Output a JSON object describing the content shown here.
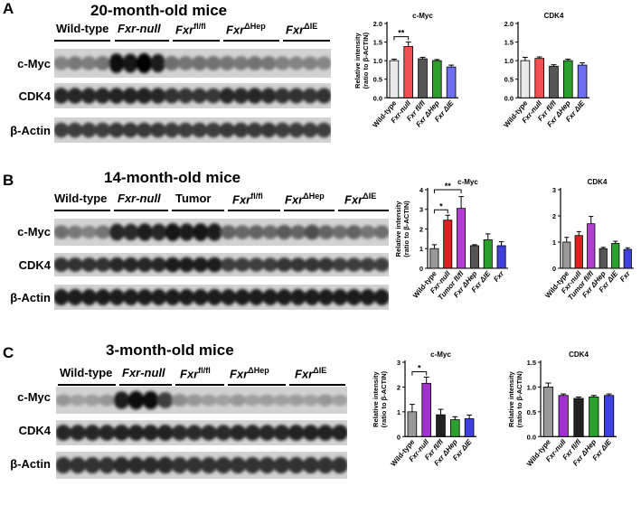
{
  "panels": [
    {
      "letter": "A",
      "title": "20-month-old mice",
      "groups": [
        {
          "label": "Wild-type",
          "style": "bold"
        },
        {
          "label": "Fxr-null",
          "style": "fxrnull"
        },
        {
          "label": "Fxr",
          "sup": "fl/fl",
          "style": "fxrsup"
        },
        {
          "label": "Fxr",
          "sup": "ΔHep",
          "style": "fxrsup"
        },
        {
          "label": "Fxr",
          "sup": "ΔIE",
          "style": "fxrsup"
        }
      ],
      "rows": [
        "c-Myc",
        "CDK4",
        "β-Actin"
      ]
    },
    {
      "letter": "B",
      "title": "14-month-old mice",
      "groups": [
        {
          "label": "Wild-type",
          "style": "bold"
        },
        {
          "label": "Fxr-null",
          "style": "fxrnull"
        },
        {
          "label": "Tumor",
          "style": "bold"
        },
        {
          "label": "Fxr",
          "sup": "fl/fl",
          "style": "fxrsup"
        },
        {
          "label": "Fxr",
          "sup": "ΔHep",
          "style": "fxrsup"
        },
        {
          "label": "Fxr",
          "sup": "ΔIE",
          "style": "fxrsup"
        }
      ],
      "rows": [
        "c-Myc",
        "CDK4",
        "β-Actin"
      ]
    },
    {
      "letter": "C",
      "title": "3-month-old mice",
      "groups": [
        {
          "label": "Wild-type",
          "style": "bold"
        },
        {
          "label": "Fxr-null",
          "style": "fxrnull"
        },
        {
          "label": "Fxr",
          "sup": "fl/fl",
          "style": "fxrsup"
        },
        {
          "label": "Fxr",
          "sup": "ΔHep",
          "style": "fxrsup"
        },
        {
          "label": "Fxr",
          "sup": "ΔIE",
          "style": "fxrsup"
        }
      ],
      "rows": [
        "c-Myc",
        "CDK4",
        "β-Actin"
      ]
    }
  ],
  "chart_data": [
    {
      "type": "bar",
      "panel": "A",
      "title": "c-Myc",
      "ylabel": "Relative intensity\n(ratio to β-ACTIN)",
      "ylim": [
        0,
        2
      ],
      "yticks": [
        0,
        0.5,
        1,
        1.5,
        2
      ],
      "ytick_labels": [
        "0.0",
        "0.5",
        "1.0",
        "1.5",
        "2.0"
      ],
      "categories": [
        "Wild-type",
        "Fxr-null",
        "Fxr fl/fl",
        "Fxr ΔHep",
        "Fxr ΔIE"
      ],
      "values": [
        1.0,
        1.38,
        1.05,
        1.0,
        0.83
      ],
      "errors": [
        0.04,
        0.12,
        0.04,
        0.03,
        0.05
      ],
      "colors": [
        "#e8e8e8",
        "#f05050",
        "#555555",
        "#2ca02c",
        "#6e6ef0"
      ],
      "significance": [
        {
          "from": 0,
          "to": 1,
          "label": "**"
        }
      ]
    },
    {
      "type": "bar",
      "panel": "A",
      "title": "CDK4",
      "ylabel": "",
      "ylim": [
        0,
        2
      ],
      "yticks": [
        0,
        0.5,
        1,
        1.5,
        2
      ],
      "ytick_labels": [
        "0.0",
        "0.5",
        "1.0",
        "1.5",
        "2.0"
      ],
      "categories": [
        "Wild-type",
        "Fxr-null",
        "Fxr fl/fl",
        "Fxr ΔHep",
        "Fxr ΔIE"
      ],
      "values": [
        1.0,
        1.06,
        0.85,
        1.0,
        0.88
      ],
      "errors": [
        0.09,
        0.04,
        0.04,
        0.04,
        0.06
      ],
      "colors": [
        "#e8e8e8",
        "#f05050",
        "#555555",
        "#2ca02c",
        "#6e6ef0"
      ],
      "significance": []
    },
    {
      "type": "bar",
      "panel": "B",
      "title": "c-Myc",
      "ylabel": "Relative intensity\n(ratio to β-ACTIN)",
      "ylim": [
        0,
        4
      ],
      "yticks": [
        0,
        1,
        2,
        3,
        4
      ],
      "ytick_labels": [
        "0",
        "1",
        "2",
        "3",
        "4"
      ],
      "categories": [
        "Wild-type",
        "Fxr-null",
        "Tumor fl/fl",
        "Fxr ΔHep",
        "Fxr ΔIE",
        "Fxr"
      ],
      "values": [
        1.0,
        2.45,
        3.05,
        1.15,
        1.45,
        1.15
      ],
      "errors": [
        0.2,
        0.25,
        0.6,
        0.05,
        0.3,
        0.2
      ],
      "colors": [
        "#999999",
        "#e02020",
        "#b040d0",
        "#555555",
        "#2ca02c",
        "#4040e0"
      ],
      "significance": [
        {
          "from": 0,
          "to": 1,
          "label": "*"
        },
        {
          "from": 0,
          "to": 2,
          "label": "**"
        }
      ]
    },
    {
      "type": "bar",
      "panel": "B",
      "title": "CDK4",
      "ylabel": "",
      "ylim": [
        0,
        3
      ],
      "yticks": [
        0,
        1,
        2,
        3
      ],
      "ytick_labels": [
        "0",
        "1",
        "2",
        "3"
      ],
      "categories": [
        "Wild-type",
        "Fxr-null",
        "Tumor fl/fl",
        "Fxr ΔHep",
        "Fxr ΔIE",
        "Fxr"
      ],
      "values": [
        1.0,
        1.25,
        1.7,
        0.75,
        0.95,
        0.72
      ],
      "errors": [
        0.18,
        0.15,
        0.28,
        0.05,
        0.08,
        0.06
      ],
      "colors": [
        "#999999",
        "#e02020",
        "#b040d0",
        "#555555",
        "#2ca02c",
        "#4040e0"
      ],
      "significance": []
    },
    {
      "type": "bar",
      "panel": "C",
      "title": "c-Myc",
      "ylabel": "Relative intensity\n(ratio to β-ACTIN)",
      "ylim": [
        0,
        3
      ],
      "yticks": [
        0,
        1,
        2,
        3
      ],
      "ytick_labels": [
        "0",
        "1",
        "2",
        "3"
      ],
      "categories": [
        "Wild-type",
        "Fxr-null",
        "Fxr fl/fl",
        "Fxr ΔHep",
        "Fxr ΔIE"
      ],
      "values": [
        1.0,
        2.15,
        0.88,
        0.68,
        0.72
      ],
      "errors": [
        0.3,
        0.25,
        0.22,
        0.12,
        0.15
      ],
      "colors": [
        "#999999",
        "#a030d0",
        "#222222",
        "#2ca02c",
        "#4040e0"
      ],
      "significance": [
        {
          "from": 0,
          "to": 1,
          "label": "*"
        }
      ]
    },
    {
      "type": "bar",
      "panel": "C",
      "title": "CDK4",
      "ylabel": "Relative intensity\n(ratio to β-ACTIN)",
      "ylim": [
        0,
        1.5
      ],
      "yticks": [
        0,
        0.5,
        1,
        1.5
      ],
      "ytick_labels": [
        "0.0",
        "0.5",
        "1.0",
        "1.5"
      ],
      "categories": [
        "Wild-type",
        "Fxr-null",
        "Fxr fl/fl",
        "Fxr ΔHep",
        "Fxr ΔIE"
      ],
      "values": [
        1.0,
        0.83,
        0.77,
        0.8,
        0.83
      ],
      "errors": [
        0.08,
        0.03,
        0.03,
        0.03,
        0.03
      ],
      "colors": [
        "#999999",
        "#a030d0",
        "#222222",
        "#2ca02c",
        "#4040e0"
      ],
      "significance": []
    }
  ],
  "blots": {
    "A": {
      "lanes": 20,
      "c-Myc": [
        0.35,
        0.4,
        0.38,
        0.42,
        0.95,
        0.9,
        1.0,
        0.85,
        0.45,
        0.42,
        0.44,
        0.43,
        0.42,
        0.4,
        0.43,
        0.41,
        0.36,
        0.34,
        0.35,
        0.33
      ],
      "CDK4": [
        0.8,
        0.8,
        0.8,
        0.8,
        0.82,
        0.84,
        0.83,
        0.8,
        0.75,
        0.74,
        0.73,
        0.72,
        0.8,
        0.79,
        0.8,
        0.78,
        0.76,
        0.75,
        0.74,
        0.75
      ],
      "β-Actin": [
        0.7,
        0.7,
        0.7,
        0.7,
        0.72,
        0.72,
        0.72,
        0.72,
        0.7,
        0.7,
        0.7,
        0.7,
        0.72,
        0.72,
        0.72,
        0.72,
        0.7,
        0.7,
        0.7,
        0.7
      ]
    },
    "B": {
      "lanes": 24,
      "c-Myc": [
        0.45,
        0.4,
        0.35,
        0.42,
        0.8,
        0.78,
        0.85,
        0.8,
        0.9,
        0.85,
        0.88,
        0.86,
        0.5,
        0.48,
        0.5,
        0.48,
        0.55,
        0.5,
        0.6,
        0.5,
        0.45,
        0.5,
        0.42,
        0.45
      ],
      "CDK4": [
        0.75,
        0.75,
        0.75,
        0.75,
        0.8,
        0.8,
        0.8,
        0.8,
        0.85,
        0.85,
        0.85,
        0.85,
        0.7,
        0.7,
        0.7,
        0.7,
        0.74,
        0.74,
        0.74,
        0.74,
        0.7,
        0.7,
        0.7,
        0.7
      ],
      "β-Actin": [
        0.85,
        0.85,
        0.85,
        0.85,
        0.85,
        0.85,
        0.85,
        0.85,
        0.85,
        0.85,
        0.85,
        0.85,
        0.85,
        0.85,
        0.85,
        0.85,
        0.85,
        0.85,
        0.85,
        0.85,
        0.85,
        0.85,
        0.85,
        0.85
      ]
    },
    "C": {
      "lanes": 20,
      "c-Myc": [
        0.25,
        0.2,
        0.22,
        0.25,
        0.85,
        0.95,
        0.92,
        0.7,
        0.3,
        0.25,
        0.22,
        0.2,
        0.25,
        0.2,
        0.22,
        0.2,
        0.22,
        0.2,
        0.25,
        0.2
      ],
      "CDK4": [
        0.8,
        0.8,
        0.8,
        0.8,
        0.82,
        0.82,
        0.82,
        0.82,
        0.78,
        0.78,
        0.78,
        0.78,
        0.8,
        0.8,
        0.8,
        0.8,
        0.82,
        0.82,
        0.82,
        0.82
      ],
      "β-Actin": [
        0.75,
        0.75,
        0.75,
        0.75,
        0.78,
        0.78,
        0.78,
        0.78,
        0.75,
        0.75,
        0.75,
        0.75,
        0.75,
        0.75,
        0.75,
        0.75,
        0.76,
        0.76,
        0.76,
        0.76
      ]
    }
  }
}
